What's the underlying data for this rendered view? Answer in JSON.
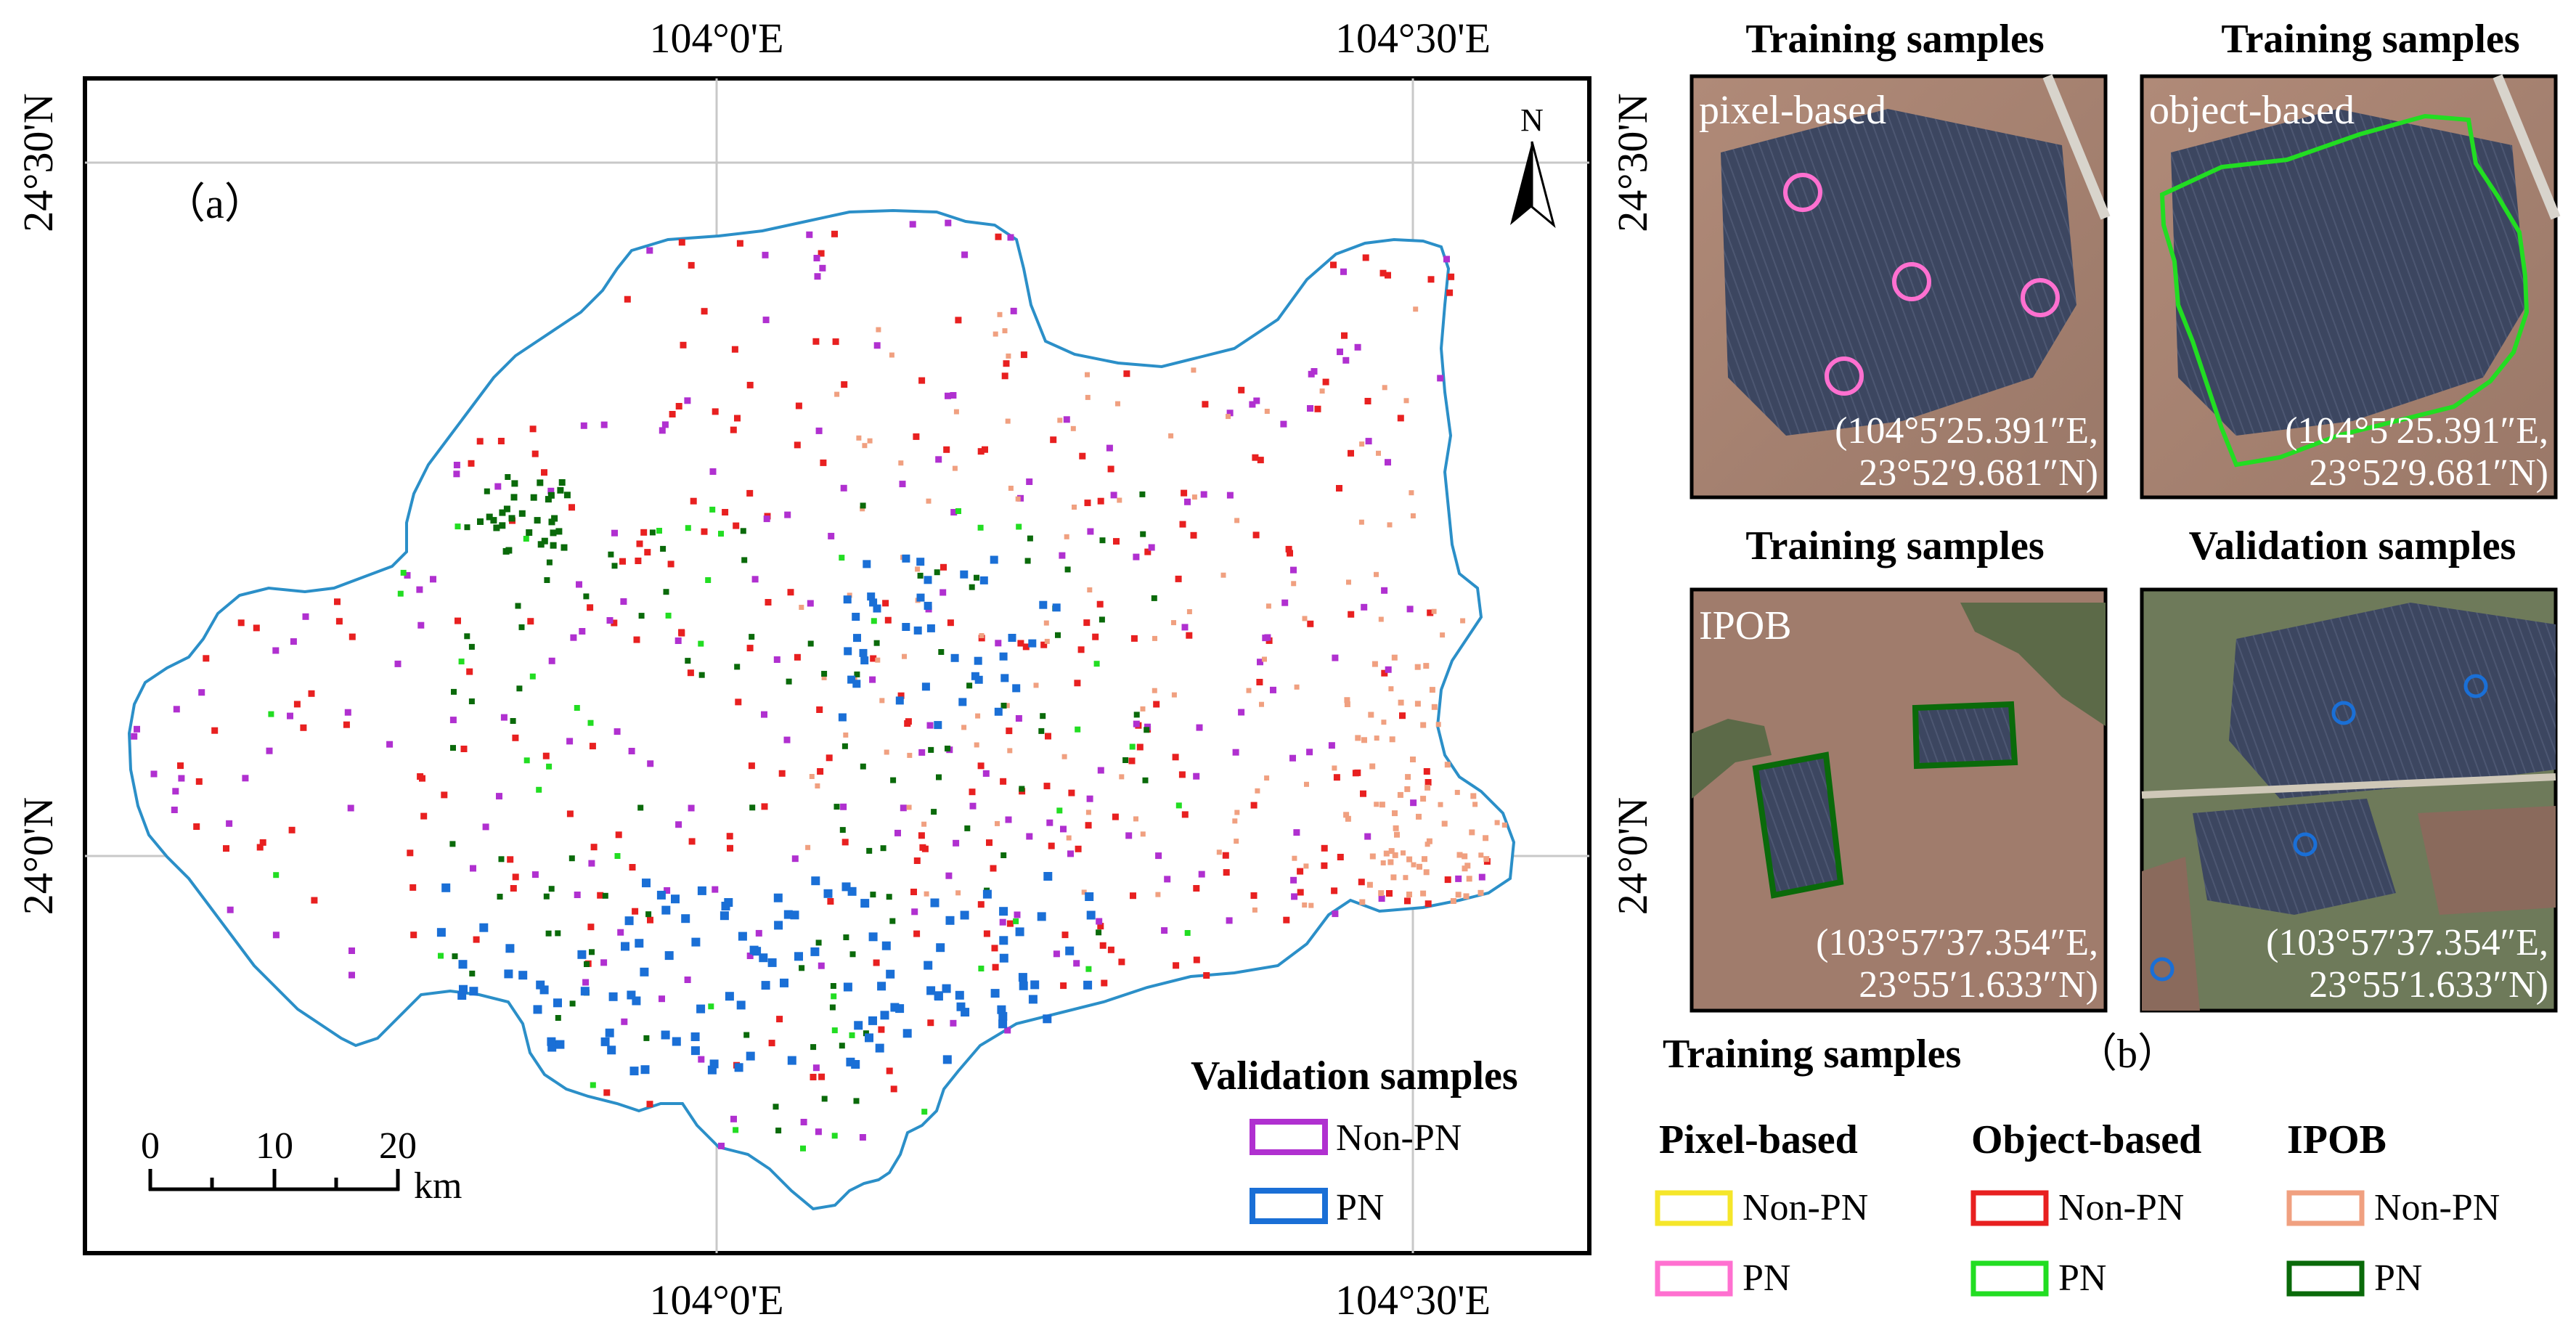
{
  "map": {
    "panel_label": "（a）",
    "grid_labels": {
      "top_left": "104°0'E",
      "top_right": "104°30'E",
      "bottom_left": "104°0'E",
      "bottom_right": "104°30'E",
      "left_top": "24°30'N",
      "left_bottom": "24°0'N",
      "right_top": "24°30'N",
      "right_bottom": "24°0'N"
    },
    "north_label": "N",
    "scale_bar": {
      "ticks": [
        "0",
        "10",
        "20"
      ],
      "unit": "km"
    },
    "legend": {
      "title": "Validation samples",
      "items": [
        {
          "label": "Non-PN",
          "color": "#b030d0"
        },
        {
          "label": "PN",
          "color": "#1a6fd6"
        }
      ]
    },
    "colors": {
      "boundary": "#2b8fc8",
      "object_non_pn": "#e82020",
      "object_pn": "#22dd22",
      "ipob_non_pn": "#f0a080",
      "ipob_pn": "#0a6a0a",
      "validation_non_pn": "#b030d0",
      "validation_pn": "#1a6fd6"
    }
  },
  "insets": {
    "panel_label": "（b）",
    "panels": [
      {
        "title": "Training samples",
        "method": "pixel-based",
        "coord_line1": "(104°5′25.391″E,",
        "coord_line2": "23°52′9.681″N)"
      },
      {
        "title": "Training samples",
        "method": "object-based",
        "coord_line1": "(104°5′25.391″E,",
        "coord_line2": "23°52′9.681″N)"
      },
      {
        "title": "Training samples",
        "method": "IPOB",
        "coord_line1": "(103°57′37.354″E,",
        "coord_line2": "23°55′1.633″N)"
      },
      {
        "title": "Validation samples",
        "method": "",
        "coord_line1": "(103°57′37.354″E,",
        "coord_line2": "23°55′1.633″N)"
      }
    ]
  },
  "training_legend": {
    "title": "Training samples",
    "groups": [
      {
        "heading": "Pixel-based",
        "items": [
          {
            "label": "Non-PN",
            "color": "#f5e62a"
          },
          {
            "label": "PN",
            "color": "#ff70d0"
          }
        ]
      },
      {
        "heading": "Object-based",
        "items": [
          {
            "label": "Non-PN",
            "color": "#e82020"
          },
          {
            "label": "PN",
            "color": "#22dd22"
          }
        ]
      },
      {
        "heading": "IPOB",
        "items": [
          {
            "label": "Non-PN",
            "color": "#f0a080"
          },
          {
            "label": "PN",
            "color": "#0a6a0a"
          }
        ]
      }
    ]
  }
}
